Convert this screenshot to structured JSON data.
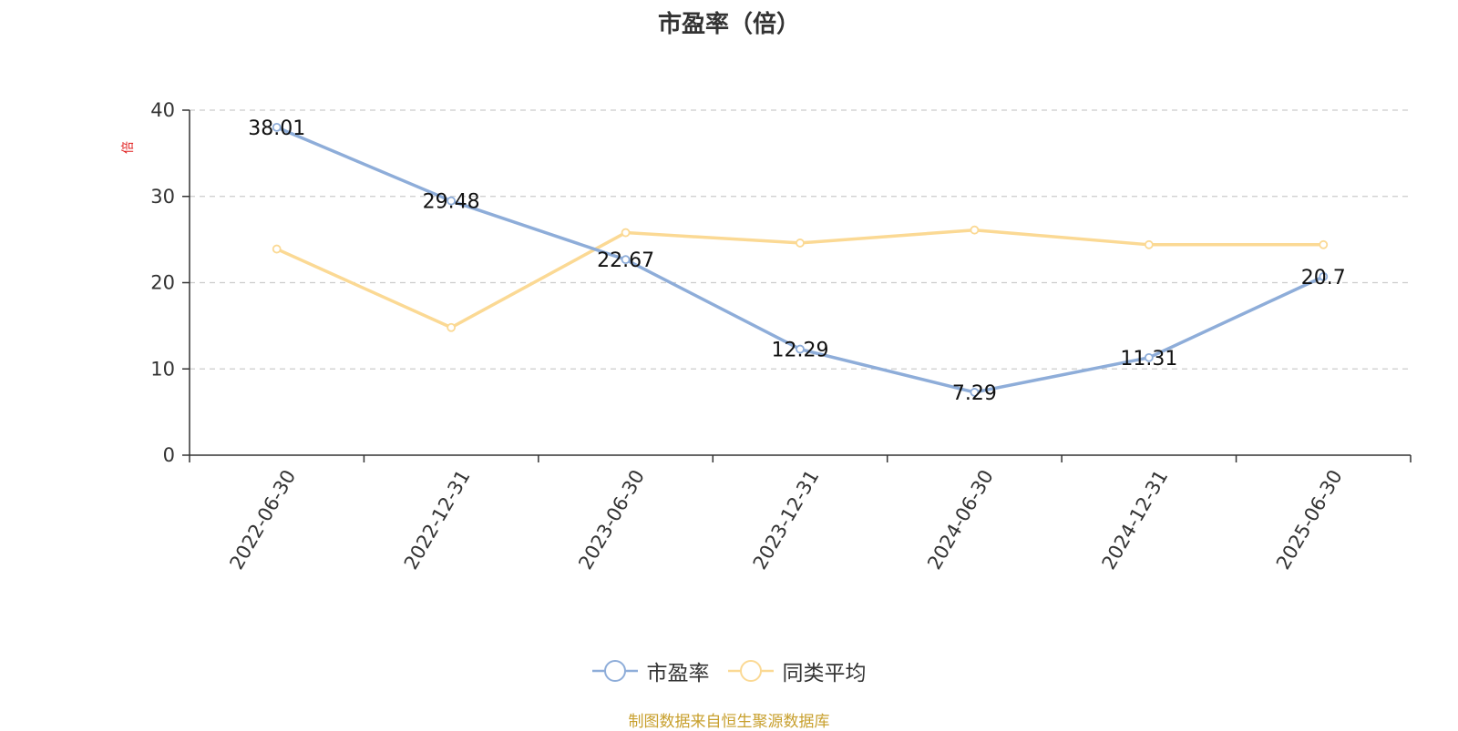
{
  "chart_data": {
    "type": "line",
    "title": "市盈率（倍）",
    "ylabel": "倍",
    "categories": [
      "2022-06-30",
      "2022-12-31",
      "2023-06-30",
      "2023-12-31",
      "2024-06-30",
      "2024-12-31",
      "2025-06-30"
    ],
    "ylim": [
      0,
      40
    ],
    "yticks": [
      0,
      10,
      20,
      30,
      40
    ],
    "grid": true,
    "legend_position": "bottom",
    "series": [
      {
        "name": "市盈率",
        "color": "#8eadd9",
        "values": [
          38.01,
          29.48,
          22.67,
          12.29,
          7.29,
          11.31,
          20.7
        ],
        "labels": [
          "38.01",
          "29.48",
          "22.67",
          "12.29",
          "7.29",
          "11.31",
          "20.7"
        ]
      },
      {
        "name": "同类平均",
        "color": "#fbd994",
        "values": [
          23.9,
          14.8,
          25.8,
          24.6,
          26.1,
          24.4,
          24.4
        ]
      }
    ]
  },
  "source_note": "制图数据来自恒生聚源数据库",
  "colors": {
    "ylabel": "#e02020",
    "source": "#c8a02e",
    "axis": "#333333",
    "grid": "#cccccc"
  }
}
